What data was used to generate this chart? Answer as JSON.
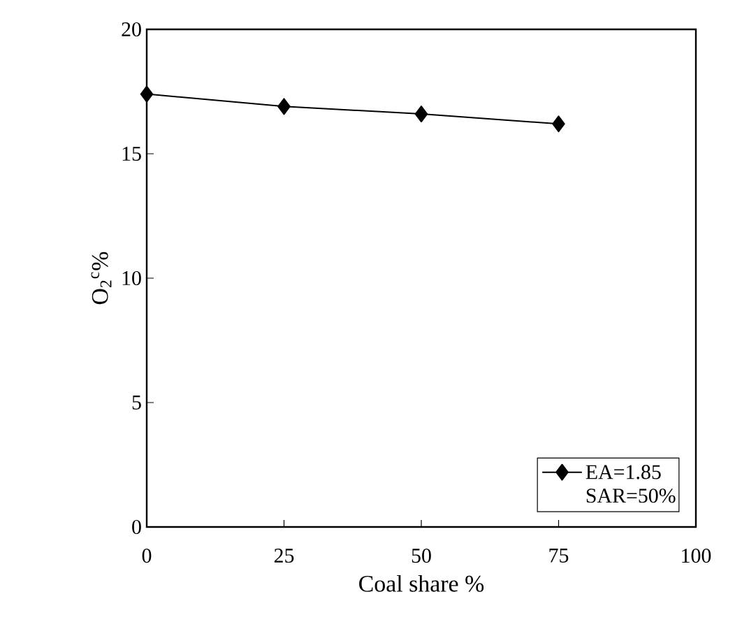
{
  "chart_data": {
    "type": "line",
    "xlabel": "Coal share %",
    "ylabel": "O$_{2}$$^{c}$%",
    "x": [
      0,
      25,
      50,
      75
    ],
    "series": [
      {
        "name": "EA=1.85 SAR=50%",
        "color": "#000000",
        "values": [
          17.4,
          16.9,
          16.6,
          16.2
        ]
      }
    ],
    "xlim": [
      0,
      100
    ],
    "ylim": [
      0,
      20
    ],
    "xticks": [
      0,
      25,
      50,
      75,
      100
    ],
    "yticks": [
      0,
      5,
      10,
      15,
      20
    ],
    "grid": false,
    "legend": "bottom right",
    "marker": "diamond",
    "line_style": "solid"
  }
}
